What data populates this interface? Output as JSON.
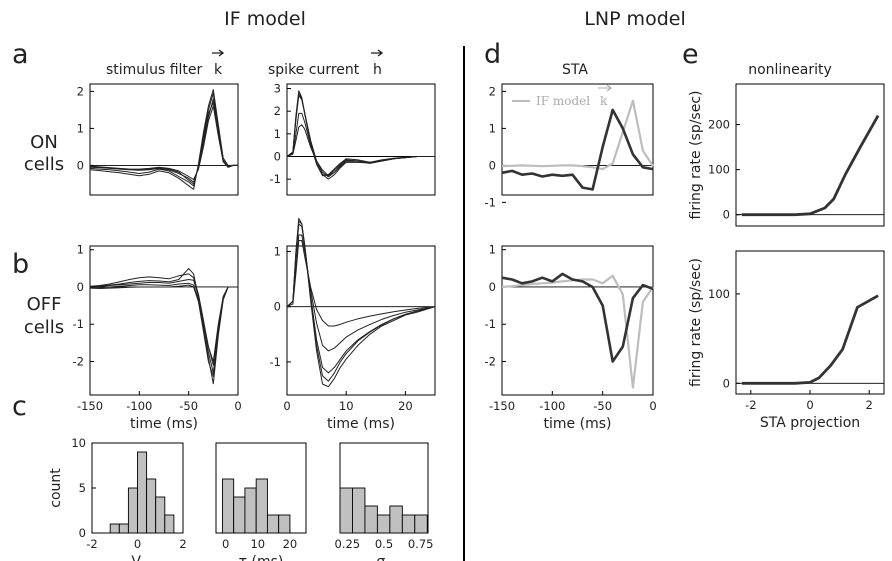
{
  "labels": {
    "if_model": "IF model",
    "lnp_model": "LNP model",
    "panel_a": "a",
    "panel_b": "b",
    "panel_c": "c",
    "panel_d": "d",
    "panel_e": "e",
    "stimulus_filter": "stimulus filter",
    "stimulus_filter_symbol": "k",
    "spike_current": "spike current",
    "spike_current_symbol": "h",
    "on_cells_line1": "ON",
    "on_cells_line2": "cells",
    "off_cells_line1": "OFF",
    "off_cells_line2": "cells",
    "sta": "STA",
    "nonlinearity": "nonlinearity",
    "legend_if_model": "IF model",
    "legend_symbol": "k"
  },
  "colors": {
    "dark": "#333333",
    "gray_line": "#bdbdbd",
    "bar_fill": "#c0c0c0"
  },
  "chart_data": [
    {
      "id": "stimulus_filter_on",
      "type": "line",
      "xlabel": "",
      "ylabel": "",
      "xlim": [
        -150,
        0
      ],
      "ylim": [
        -0.8,
        2.2
      ],
      "xticks": [],
      "yticks": [
        0,
        1,
        2
      ],
      "x": [
        -150,
        -140,
        -130,
        -120,
        -110,
        -100,
        -90,
        -80,
        -70,
        -60,
        -50,
        -45,
        -40,
        -35,
        -30,
        -25,
        -20,
        -15,
        -10,
        -5,
        0
      ],
      "series": [
        {
          "values": [
            -0.05,
            -0.06,
            -0.08,
            -0.1,
            -0.12,
            -0.13,
            -0.12,
            -0.08,
            -0.12,
            -0.22,
            -0.35,
            -0.45,
            -0.05,
            0.6,
            1.3,
            1.8,
            0.9,
            0.1,
            -0.05,
            0,
            0
          ]
        },
        {
          "values": [
            -0.08,
            -0.1,
            -0.12,
            -0.15,
            -0.18,
            -0.22,
            -0.18,
            -0.1,
            -0.15,
            -0.3,
            -0.45,
            -0.55,
            0.0,
            0.8,
            1.5,
            1.95,
            1.0,
            0.15,
            -0.05,
            0,
            0
          ]
        },
        {
          "values": [
            -0.02,
            -0.04,
            -0.06,
            -0.08,
            -0.1,
            -0.1,
            -0.08,
            -0.05,
            -0.08,
            -0.15,
            -0.3,
            -0.38,
            -0.1,
            0.5,
            1.2,
            1.6,
            0.8,
            0.1,
            -0.04,
            0,
            0
          ]
        },
        {
          "values": [
            -0.12,
            -0.14,
            -0.17,
            -0.2,
            -0.24,
            -0.28,
            -0.24,
            -0.15,
            -0.2,
            -0.35,
            -0.55,
            -0.65,
            0.05,
            0.9,
            1.6,
            2.05,
            1.1,
            0.2,
            0.0,
            0,
            0
          ]
        },
        {
          "values": [
            -0.04,
            -0.05,
            -0.07,
            -0.09,
            -0.11,
            -0.12,
            -0.1,
            -0.07,
            -0.1,
            -0.18,
            -0.4,
            -0.5,
            -0.02,
            0.7,
            1.4,
            1.7,
            0.95,
            0.12,
            -0.03,
            0,
            0
          ]
        }
      ]
    },
    {
      "id": "spike_current_on",
      "type": "line",
      "xlabel": "",
      "ylabel": "",
      "xlim": [
        0,
        25
      ],
      "ylim": [
        -1.7,
        3.2
      ],
      "xticks": [],
      "yticks": [
        -1,
        0,
        1,
        2,
        3
      ],
      "x": [
        0,
        1,
        1.5,
        2,
        2.5,
        3,
        4,
        5,
        6,
        7,
        8,
        9,
        10,
        12,
        14,
        16,
        18,
        20,
        22,
        25
      ],
      "series": [
        {
          "values": [
            0,
            0.2,
            1.8,
            2.9,
            2.6,
            1.9,
            0.6,
            -0.3,
            -0.8,
            -0.85,
            -0.6,
            -0.35,
            -0.15,
            -0.2,
            -0.3,
            -0.2,
            -0.1,
            -0.05,
            0,
            0
          ]
        },
        {
          "values": [
            0,
            0.2,
            1.6,
            2.7,
            2.5,
            1.9,
            0.7,
            -0.2,
            -0.7,
            -0.9,
            -0.7,
            -0.4,
            -0.2,
            -0.2,
            -0.3,
            -0.2,
            -0.1,
            -0.05,
            0,
            0
          ]
        },
        {
          "values": [
            0,
            0.15,
            1.0,
            1.9,
            1.9,
            1.5,
            0.5,
            -0.3,
            -0.8,
            -1.0,
            -0.8,
            -0.5,
            -0.25,
            -0.25,
            -0.3,
            -0.2,
            -0.1,
            -0.05,
            0,
            0
          ]
        },
        {
          "values": [
            0,
            0.1,
            0.7,
            1.3,
            1.4,
            1.2,
            0.4,
            -0.2,
            -0.6,
            -0.85,
            -0.7,
            -0.45,
            -0.25,
            -0.25,
            -0.25,
            -0.2,
            -0.1,
            -0.05,
            0,
            0
          ]
        },
        {
          "values": [
            0,
            0.2,
            1.7,
            2.8,
            2.55,
            1.85,
            0.55,
            -0.35,
            -0.85,
            -0.8,
            -0.55,
            -0.3,
            -0.1,
            -0.15,
            -0.25,
            -0.15,
            -0.08,
            -0.03,
            0,
            0
          ]
        }
      ]
    },
    {
      "id": "stimulus_filter_off",
      "type": "line",
      "xlabel": "time (ms)",
      "ylabel": "",
      "xlim": [
        -150,
        0
      ],
      "ylim": [
        -2.9,
        1.1
      ],
      "xticks": [
        -150,
        -100,
        -50,
        0
      ],
      "yticks": [
        -2,
        -1,
        0,
        1
      ],
      "x": [
        -150,
        -140,
        -130,
        -120,
        -110,
        -100,
        -90,
        -80,
        -70,
        -60,
        -50,
        -45,
        -40,
        -35,
        -30,
        -25,
        -20,
        -15,
        -10,
        -5,
        0
      ],
      "series": [
        {
          "values": [
            0.02,
            0.04,
            0.08,
            0.14,
            0.2,
            0.25,
            0.27,
            0.25,
            0.22,
            0.3,
            0.35,
            0.25,
            -0.2,
            -0.9,
            -1.6,
            -2.1,
            -1.1,
            -0.3,
            0.0,
            0,
            0
          ]
        },
        {
          "values": [
            0.0,
            0.02,
            0.05,
            0.08,
            0.12,
            0.15,
            0.17,
            0.16,
            0.14,
            0.2,
            0.5,
            0.35,
            -0.3,
            -1.1,
            -1.9,
            -2.6,
            -1.3,
            -0.35,
            0.0,
            0,
            0
          ]
        },
        {
          "values": [
            -0.02,
            -0.02,
            0.0,
            0.02,
            0.04,
            0.06,
            0.06,
            0.05,
            0.04,
            0.08,
            0.1,
            0.05,
            -0.35,
            -1.0,
            -1.6,
            -2.0,
            -1.0,
            -0.25,
            0.0,
            0,
            0
          ]
        },
        {
          "values": [
            0.01,
            0.02,
            0.04,
            0.06,
            0.08,
            0.1,
            0.12,
            0.12,
            0.1,
            0.15,
            0.2,
            0.18,
            -0.25,
            -0.95,
            -1.75,
            -2.3,
            -1.15,
            -0.3,
            0.0,
            0,
            0
          ]
        },
        {
          "values": [
            -0.03,
            -0.04,
            -0.03,
            -0.02,
            -0.01,
            0.0,
            0.0,
            0.0,
            0.0,
            0.02,
            0.05,
            0.0,
            -0.4,
            -1.2,
            -2.0,
            -2.4,
            -1.2,
            -0.3,
            0.0,
            0,
            0
          ]
        }
      ]
    },
    {
      "id": "spike_current_off",
      "type": "line",
      "xlabel": "time (ms)",
      "ylabel": "",
      "xlim": [
        0,
        25
      ],
      "ylim": [
        -1.6,
        1.1
      ],
      "xticks": [
        0,
        10,
        20
      ],
      "yticks": [
        -1,
        0,
        1
      ],
      "x": [
        0,
        1,
        1.5,
        2,
        2.5,
        3,
        4,
        5,
        6,
        7,
        8,
        9,
        10,
        12,
        14,
        16,
        18,
        20,
        22,
        25
      ],
      "series": [
        {
          "values": [
            0,
            0.1,
            1.0,
            1.6,
            1.5,
            1.1,
            0.1,
            -0.8,
            -1.4,
            -1.45,
            -1.3,
            -1.1,
            -0.95,
            -0.7,
            -0.5,
            -0.35,
            -0.25,
            -0.15,
            -0.1,
            0
          ]
        },
        {
          "values": [
            0,
            0.1,
            0.9,
            1.5,
            1.45,
            1.1,
            0.2,
            -0.6,
            -1.1,
            -1.2,
            -1.1,
            -0.95,
            -0.8,
            -0.6,
            -0.45,
            -0.32,
            -0.22,
            -0.14,
            -0.08,
            0
          ]
        },
        {
          "values": [
            0,
            0.1,
            0.7,
            1.3,
            1.3,
            1.0,
            0.3,
            -0.3,
            -0.7,
            -0.8,
            -0.75,
            -0.65,
            -0.55,
            -0.42,
            -0.32,
            -0.23,
            -0.16,
            -0.1,
            -0.06,
            0
          ]
        },
        {
          "values": [
            0,
            0.05,
            0.6,
            1.2,
            1.2,
            0.9,
            0.35,
            -0.05,
            -0.25,
            -0.35,
            -0.35,
            -0.32,
            -0.28,
            -0.22,
            -0.17,
            -0.13,
            -0.09,
            -0.06,
            -0.03,
            0
          ]
        },
        {
          "values": [
            0,
            0.1,
            0.95,
            1.55,
            1.5,
            1.1,
            0.15,
            -0.7,
            -1.25,
            -1.35,
            -1.2,
            -1.0,
            -0.85,
            -0.62,
            -0.46,
            -0.33,
            -0.22,
            -0.14,
            -0.08,
            0
          ]
        }
      ]
    },
    {
      "id": "hist_vl",
      "type": "bar",
      "xlabel": "V",
      "xlabel_sub": "l",
      "ylabel": "count",
      "xlim": [
        -2,
        2
      ],
      "ylim": [
        0,
        10
      ],
      "xticks": [
        -2,
        0,
        2
      ],
      "yticks": [
        0,
        5,
        10
      ],
      "bin_edges": [
        -1.2,
        -0.8,
        -0.4,
        0.0,
        0.4,
        0.8,
        1.2,
        1.6
      ],
      "values": [
        1,
        1,
        5,
        9,
        6,
        4,
        2
      ]
    },
    {
      "id": "hist_tau",
      "type": "bar",
      "xlabel": "τ (ms)",
      "ylabel": "",
      "xlim": [
        -3,
        25
      ],
      "ylim": [
        0,
        10
      ],
      "xticks": [
        0,
        10,
        20
      ],
      "yticks": [],
      "bin_edges": [
        -1,
        2.5,
        6,
        9.5,
        13,
        16.5,
        20
      ],
      "values": [
        6,
        4,
        5,
        6,
        2,
        2
      ]
    },
    {
      "id": "hist_sigma",
      "type": "bar",
      "xlabel": "σ",
      "xlabel_sub": "n",
      "ylabel": "",
      "xlim": [
        0.2,
        0.8
      ],
      "ylim": [
        0,
        10
      ],
      "xticks": [
        0.25,
        0.5,
        0.75
      ],
      "yticks": [],
      "bin_edges": [
        0.2,
        0.285,
        0.37,
        0.455,
        0.54,
        0.625,
        0.71,
        0.795
      ],
      "values": [
        5,
        5,
        3,
        2,
        3,
        2,
        2
      ]
    },
    {
      "id": "sta_on",
      "type": "line",
      "xlabel": "",
      "ylabel": "",
      "xlim": [
        -150,
        0
      ],
      "ylim": [
        -0.8,
        2.2
      ],
      "xticks": [],
      "yticks": [
        -1,
        0,
        1,
        2
      ],
      "x": [
        -150,
        -140,
        -130,
        -120,
        -110,
        -100,
        -90,
        -80,
        -70,
        -60,
        -50,
        -40,
        -30,
        -20,
        -10,
        0
      ],
      "series": [
        {
          "name": "IF model",
          "role": "gray",
          "values": [
            -0.02,
            -0.01,
            0.0,
            -0.01,
            -0.02,
            -0.01,
            0.0,
            0.0,
            -0.02,
            -0.05,
            -0.1,
            0.05,
            0.9,
            1.75,
            0.4,
            -0.02
          ]
        },
        {
          "role": "dark",
          "values": [
            -0.2,
            -0.15,
            -0.25,
            -0.22,
            -0.3,
            -0.25,
            -0.28,
            -0.25,
            -0.6,
            -0.65,
            0.5,
            1.5,
            1.0,
            0.3,
            -0.05,
            -0.1
          ]
        }
      ]
    },
    {
      "id": "sta_off",
      "type": "line",
      "xlabel": "time (ms)",
      "ylabel": "",
      "xlim": [
        -150,
        0
      ],
      "ylim": [
        -2.9,
        1.1
      ],
      "xticks": [
        -150,
        -100,
        -50,
        0
      ],
      "yticks": [
        -2,
        -1,
        0,
        1
      ],
      "x": [
        -150,
        -140,
        -130,
        -120,
        -110,
        -100,
        -90,
        -80,
        -70,
        -60,
        -50,
        -40,
        -30,
        -20,
        -10,
        0
      ],
      "series": [
        {
          "role": "gray",
          "values": [
            0.0,
            0.02,
            0.05,
            0.08,
            0.1,
            0.12,
            0.15,
            0.18,
            0.2,
            0.2,
            0.1,
            0.3,
            -0.2,
            -2.7,
            -0.4,
            0.0
          ]
        },
        {
          "role": "dark",
          "values": [
            0.25,
            0.2,
            0.1,
            0.15,
            0.25,
            0.15,
            0.35,
            0.2,
            0.15,
            0.0,
            -0.5,
            -2.0,
            -1.6,
            -0.3,
            0.05,
            -0.05
          ]
        }
      ]
    },
    {
      "id": "nonlin_on",
      "type": "line",
      "xlabel": "",
      "ylabel": "firing rate (sp/sec)",
      "xlim": [
        -2.5,
        2.5
      ],
      "ylim": [
        -25,
        290
      ],
      "xticks": [],
      "yticks": [
        0,
        100,
        200
      ],
      "x": [
        -2.3,
        -1.5,
        -0.5,
        0.0,
        0.5,
        0.8,
        1.2,
        1.7,
        2.3
      ],
      "series": [
        {
          "values": [
            0,
            0,
            0,
            2,
            15,
            35,
            90,
            150,
            220
          ]
        }
      ]
    },
    {
      "id": "nonlin_off",
      "type": "line",
      "xlabel": "STA projection",
      "ylabel": "firing rate (sp/sec)",
      "xlim": [
        -2.5,
        2.5
      ],
      "ylim": [
        -12,
        148
      ],
      "xticks": [
        -2,
        0,
        2
      ],
      "yticks": [
        0,
        100
      ],
      "x": [
        -2.3,
        -1.5,
        -0.5,
        0.0,
        0.3,
        0.7,
        1.1,
        1.6,
        2.3
      ],
      "series": [
        {
          "values": [
            0,
            0,
            0,
            1,
            6,
            20,
            38,
            85,
            98
          ]
        }
      ]
    }
  ]
}
